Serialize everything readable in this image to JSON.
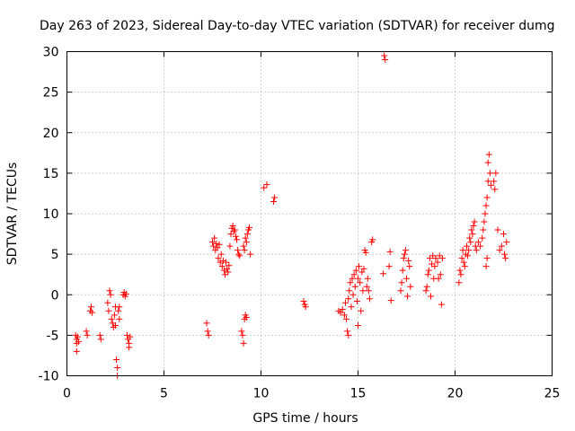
{
  "chart_data": {
    "type": "scatter",
    "title": "Day 263 of 2023, Sidereal Day-to-day VTEC variation (SDTVAR) for receiver dumg",
    "xlabel": "GPS time / hours",
    "ylabel": "SDTVAR / TECUs",
    "xlim": [
      0,
      25
    ],
    "ylim": [
      -10,
      30
    ],
    "xticks": [
      0,
      5,
      10,
      15,
      20,
      25
    ],
    "yticks": [
      -10,
      -5,
      0,
      5,
      10,
      15,
      20,
      25,
      30
    ],
    "xtick_labels": [
      "0",
      "5",
      "10",
      "15",
      "20",
      "25"
    ],
    "ytick_labels": [
      "-10",
      "-5",
      "0",
      "5",
      "10",
      "15",
      "20",
      "25",
      "30"
    ],
    "grid": true,
    "marker": "+",
    "color": "#ff0000",
    "series": [
      {
        "name": "SDTVAR",
        "points": [
          [
            0.45,
            -5.0
          ],
          [
            0.5,
            -5.5
          ],
          [
            0.5,
            -6.0
          ],
          [
            0.5,
            -7.0
          ],
          [
            0.55,
            -5.2
          ],
          [
            0.6,
            -5.8
          ],
          [
            1.0,
            -4.5
          ],
          [
            1.05,
            -5.0
          ],
          [
            1.2,
            -2.0
          ],
          [
            1.25,
            -1.5
          ],
          [
            1.3,
            -2.2
          ],
          [
            1.7,
            -5.0
          ],
          [
            1.75,
            -5.5
          ],
          [
            2.1,
            -1.0
          ],
          [
            2.15,
            -2.0
          ],
          [
            2.2,
            0.5
          ],
          [
            2.25,
            0.0
          ],
          [
            2.3,
            -3.0
          ],
          [
            2.35,
            -3.5
          ],
          [
            2.4,
            -4.0
          ],
          [
            2.45,
            -2.5
          ],
          [
            2.5,
            -1.5
          ],
          [
            2.5,
            -3.8
          ],
          [
            2.55,
            -8.0
          ],
          [
            2.6,
            -9.0
          ],
          [
            2.6,
            -10.0
          ],
          [
            2.65,
            -2.0
          ],
          [
            2.7,
            -1.5
          ],
          [
            2.7,
            -3.0
          ],
          [
            2.9,
            0.0
          ],
          [
            2.95,
            0.3
          ],
          [
            3.0,
            -0.2
          ],
          [
            3.05,
            0.1
          ],
          [
            3.1,
            -5.0
          ],
          [
            3.15,
            -5.5
          ],
          [
            3.2,
            -6.0
          ],
          [
            3.2,
            -6.5
          ],
          [
            3.25,
            -5.2
          ],
          [
            7.2,
            -3.5
          ],
          [
            7.25,
            -4.5
          ],
          [
            7.3,
            -5.0
          ],
          [
            7.5,
            6.5
          ],
          [
            7.55,
            6.0
          ],
          [
            7.6,
            7.0
          ],
          [
            7.65,
            5.5
          ],
          [
            7.7,
            6.3
          ],
          [
            7.75,
            5.8
          ],
          [
            7.8,
            4.5
          ],
          [
            7.85,
            6.2
          ],
          [
            7.9,
            4.0
          ],
          [
            7.95,
            5.0
          ],
          [
            8.0,
            3.5
          ],
          [
            8.05,
            4.2
          ],
          [
            8.1,
            3.0
          ],
          [
            8.15,
            2.5
          ],
          [
            8.2,
            4.0
          ],
          [
            8.25,
            3.2
          ],
          [
            8.3,
            2.8
          ],
          [
            8.35,
            3.6
          ],
          [
            8.4,
            6.0
          ],
          [
            8.45,
            7.5
          ],
          [
            8.5,
            8.2
          ],
          [
            8.55,
            8.5
          ],
          [
            8.6,
            7.8
          ],
          [
            8.65,
            8.0
          ],
          [
            8.7,
            7.2
          ],
          [
            8.75,
            6.8
          ],
          [
            8.8,
            5.5
          ],
          [
            8.85,
            5.0
          ],
          [
            8.9,
            4.8
          ],
          [
            9.0,
            -4.5
          ],
          [
            9.05,
            -5.0
          ],
          [
            9.1,
            -6.0
          ],
          [
            9.15,
            -3.0
          ],
          [
            9.2,
            -2.5
          ],
          [
            9.25,
            -2.8
          ],
          [
            9.1,
            6.0
          ],
          [
            9.15,
            5.5
          ],
          [
            9.2,
            7.0
          ],
          [
            9.25,
            6.5
          ],
          [
            9.3,
            7.5
          ],
          [
            9.35,
            8.0
          ],
          [
            9.4,
            8.3
          ],
          [
            9.45,
            5.0
          ],
          [
            10.15,
            13.2
          ],
          [
            10.3,
            13.6
          ],
          [
            10.65,
            11.5
          ],
          [
            10.7,
            12.0
          ],
          [
            12.2,
            -0.8
          ],
          [
            12.25,
            -1.2
          ],
          [
            12.3,
            -1.5
          ],
          [
            14.0,
            -2.0
          ],
          [
            14.1,
            -2.2
          ],
          [
            14.2,
            -1.8
          ],
          [
            14.3,
            -2.5
          ],
          [
            14.35,
            -1.0
          ],
          [
            14.4,
            -3.0
          ],
          [
            14.45,
            -4.5
          ],
          [
            14.5,
            -5.0
          ],
          [
            14.5,
            -0.5
          ],
          [
            14.55,
            0.5
          ],
          [
            14.6,
            1.5
          ],
          [
            14.65,
            -1.5
          ],
          [
            14.7,
            2.0
          ],
          [
            14.75,
            0.0
          ],
          [
            14.8,
            2.5
          ],
          [
            14.85,
            1.0
          ],
          [
            14.9,
            3.0
          ],
          [
            14.95,
            -0.8
          ],
          [
            15.0,
            2.0
          ],
          [
            15.0,
            -3.8
          ],
          [
            15.05,
            3.5
          ],
          [
            15.1,
            1.5
          ],
          [
            15.15,
            -2.0
          ],
          [
            15.2,
            2.8
          ],
          [
            15.25,
            0.5
          ],
          [
            15.3,
            3.2
          ],
          [
            15.35,
            5.5
          ],
          [
            15.4,
            5.2
          ],
          [
            15.45,
            1.0
          ],
          [
            15.5,
            2.0
          ],
          [
            15.55,
            0.5
          ],
          [
            15.6,
            -0.5
          ],
          [
            15.7,
            6.5
          ],
          [
            15.75,
            6.8
          ],
          [
            16.3,
            2.6
          ],
          [
            16.35,
            29.5
          ],
          [
            16.4,
            29.0
          ],
          [
            16.6,
            3.5
          ],
          [
            16.65,
            5.3
          ],
          [
            16.7,
            -0.7
          ],
          [
            17.2,
            0.5
          ],
          [
            17.25,
            1.5
          ],
          [
            17.3,
            3.0
          ],
          [
            17.35,
            4.5
          ],
          [
            17.4,
            5.0
          ],
          [
            17.45,
            5.5
          ],
          [
            17.5,
            2.0
          ],
          [
            17.55,
            -0.2
          ],
          [
            17.6,
            4.2
          ],
          [
            17.65,
            3.5
          ],
          [
            17.7,
            1.0
          ],
          [
            18.5,
            0.5
          ],
          [
            18.55,
            1.0
          ],
          [
            18.6,
            2.5
          ],
          [
            18.65,
            3.0
          ],
          [
            18.7,
            4.5
          ],
          [
            18.75,
            -0.2
          ],
          [
            18.8,
            3.8
          ],
          [
            18.85,
            4.8
          ],
          [
            18.9,
            2.0
          ],
          [
            18.95,
            3.5
          ],
          [
            19.0,
            4.5
          ],
          [
            19.1,
            4.0
          ],
          [
            19.15,
            2.0
          ],
          [
            19.2,
            4.8
          ],
          [
            19.25,
            2.5
          ],
          [
            19.3,
            -1.2
          ],
          [
            19.35,
            4.5
          ],
          [
            20.2,
            1.5
          ],
          [
            20.25,
            3.0
          ],
          [
            20.3,
            2.5
          ],
          [
            20.35,
            4.5
          ],
          [
            20.4,
            5.5
          ],
          [
            20.45,
            4.0
          ],
          [
            20.5,
            3.5
          ],
          [
            20.55,
            5.0
          ],
          [
            20.6,
            6.0
          ],
          [
            20.65,
            4.8
          ],
          [
            20.7,
            5.5
          ],
          [
            20.75,
            7.0
          ],
          [
            20.8,
            6.5
          ],
          [
            20.85,
            8.0
          ],
          [
            20.9,
            7.5
          ],
          [
            20.95,
            8.5
          ],
          [
            21.0,
            9.0
          ],
          [
            21.05,
            6.0
          ],
          [
            21.1,
            5.5
          ],
          [
            21.2,
            6.5
          ],
          [
            21.3,
            6.0
          ],
          [
            21.4,
            7.0
          ],
          [
            21.45,
            8.0
          ],
          [
            21.5,
            9.0
          ],
          [
            21.55,
            10.0
          ],
          [
            21.6,
            11.0
          ],
          [
            21.65,
            12.0
          ],
          [
            21.7,
            14.0
          ],
          [
            21.7,
            16.3
          ],
          [
            21.75,
            17.3
          ],
          [
            21.8,
            15.0
          ],
          [
            21.85,
            13.5
          ],
          [
            21.6,
            3.5
          ],
          [
            21.65,
            4.5
          ],
          [
            22.0,
            14.0
          ],
          [
            22.05,
            13.0
          ],
          [
            22.1,
            15.0
          ],
          [
            22.2,
            8.0
          ],
          [
            22.3,
            5.5
          ],
          [
            22.4,
            6.0
          ],
          [
            22.5,
            7.5
          ],
          [
            22.55,
            5.0
          ],
          [
            22.6,
            4.5
          ],
          [
            22.65,
            6.5
          ]
        ]
      }
    ]
  }
}
